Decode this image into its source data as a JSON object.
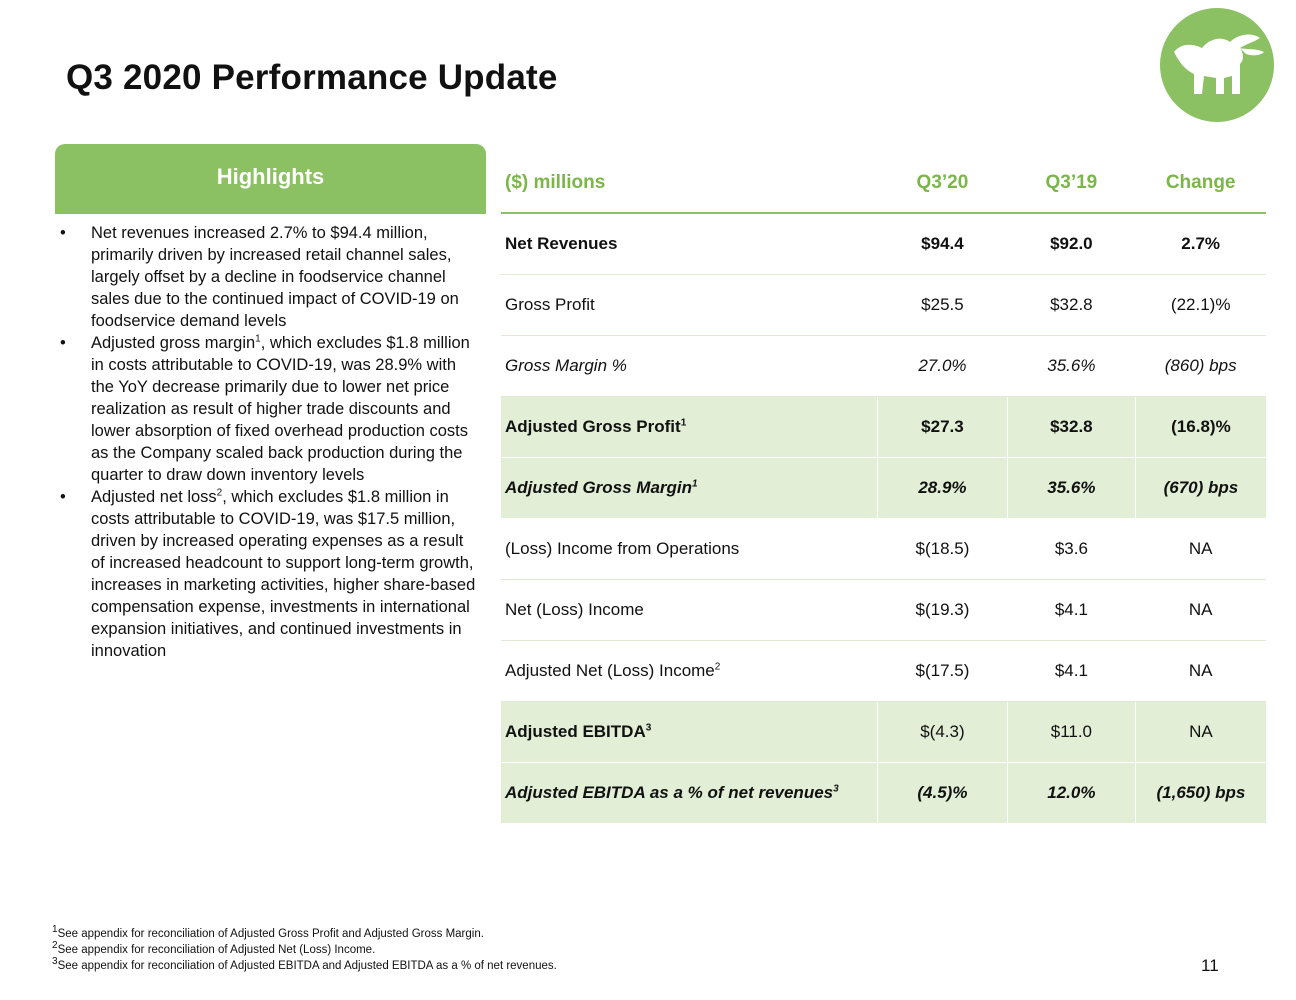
{
  "title": "Q3 2020 Performance Update",
  "colors": {
    "brand_green": "#8bc063",
    "header_text": "#7ab648",
    "highlight_row": "#e2efd6"
  },
  "logo": {
    "icon": "bull-logo-icon"
  },
  "highlights": {
    "title": "Highlights",
    "bullets": [
      {
        "pre": "Net revenues increased 2.7% to $94.4 million, primarily driven by increased retail channel sales, largely offset by a decline in foodservice channel sales due to the continued impact of COVID-19 on foodservice demand levels",
        "sup": "",
        "post": ""
      },
      {
        "pre": " Adjusted gross margin",
        "sup": "1",
        "post": ", which excludes $1.8 million in costs attributable to COVID-19, was 28.9% with the YoY decrease primarily due to lower net price realization as result of higher trade discounts and lower absorption of fixed overhead production costs as the Company scaled back production during the quarter to draw down inventory levels"
      },
      {
        "pre": " Adjusted net loss",
        "sup": "2",
        "post": ", which excludes $1.8 million in costs attributable to COVID-19, was $17.5 million, driven by increased operating expenses as a result of increased headcount to support long-term growth, increases in marketing activities, higher share-based compensation expense, investments in international expansion initiatives, and continued investments in innovation"
      }
    ]
  },
  "table": {
    "headers": [
      "($) millions",
      "Q3’20",
      "Q3’19",
      "Change"
    ],
    "rows": [
      {
        "label": "Net Revenues",
        "sup": "",
        "q320": "$94.4",
        "q319": "$92.0",
        "change": "2.7%"
      },
      {
        "label": "Gross Profit",
        "sup": "",
        "q320": "$25.5",
        "q319": "$32.8",
        "change": "(22.1)%"
      },
      {
        "label": "Gross Margin %",
        "sup": "",
        "q320": "27.0%",
        "q319": "35.6%",
        "change": "(860) bps"
      },
      {
        "label": "Adjusted Gross Profit",
        "sup": "1",
        "q320": "$27.3",
        "q319": "$32.8",
        "change": "(16.8)%"
      },
      {
        "label": "Adjusted Gross Margin",
        "sup": "1",
        "q320": "28.9%",
        "q319": "35.6%",
        "change": "(670) bps"
      },
      {
        "label": "(Loss) Income from Operations",
        "sup": "",
        "q320": "$(18.5)",
        "q319": "$3.6",
        "change": "NA"
      },
      {
        "label": "Net (Loss) Income",
        "sup": "",
        "q320": "$(19.3)",
        "q319": "$4.1",
        "change": "NA"
      },
      {
        "label": "Adjusted Net (Loss) Income",
        "sup": "2",
        "q320": "$(17.5)",
        "q319": "$4.1",
        "change": "NA"
      },
      {
        "label": "Adjusted EBITDA",
        "sup": "3",
        "q320": "$(4.3)",
        "q319": "$11.0",
        "change": "NA"
      },
      {
        "label": "Adjusted EBITDA as a % of net revenues",
        "sup": "3",
        "q320": "(4.5)%",
        "q319": "12.0%",
        "change": "(1,650) bps"
      }
    ]
  },
  "footnotes": [
    {
      "num": "1",
      "text": "See appendix for reconciliation of Adjusted Gross Profit and Adjusted Gross Margin."
    },
    {
      "num": "2",
      "text": "See appendix for reconciliation of Adjusted Net (Loss) Income."
    },
    {
      "num": "3",
      "text": "See appendix for reconciliation of Adjusted EBITDA and Adjusted EBITDA as a % of net revenues."
    }
  ],
  "page_number": "11"
}
